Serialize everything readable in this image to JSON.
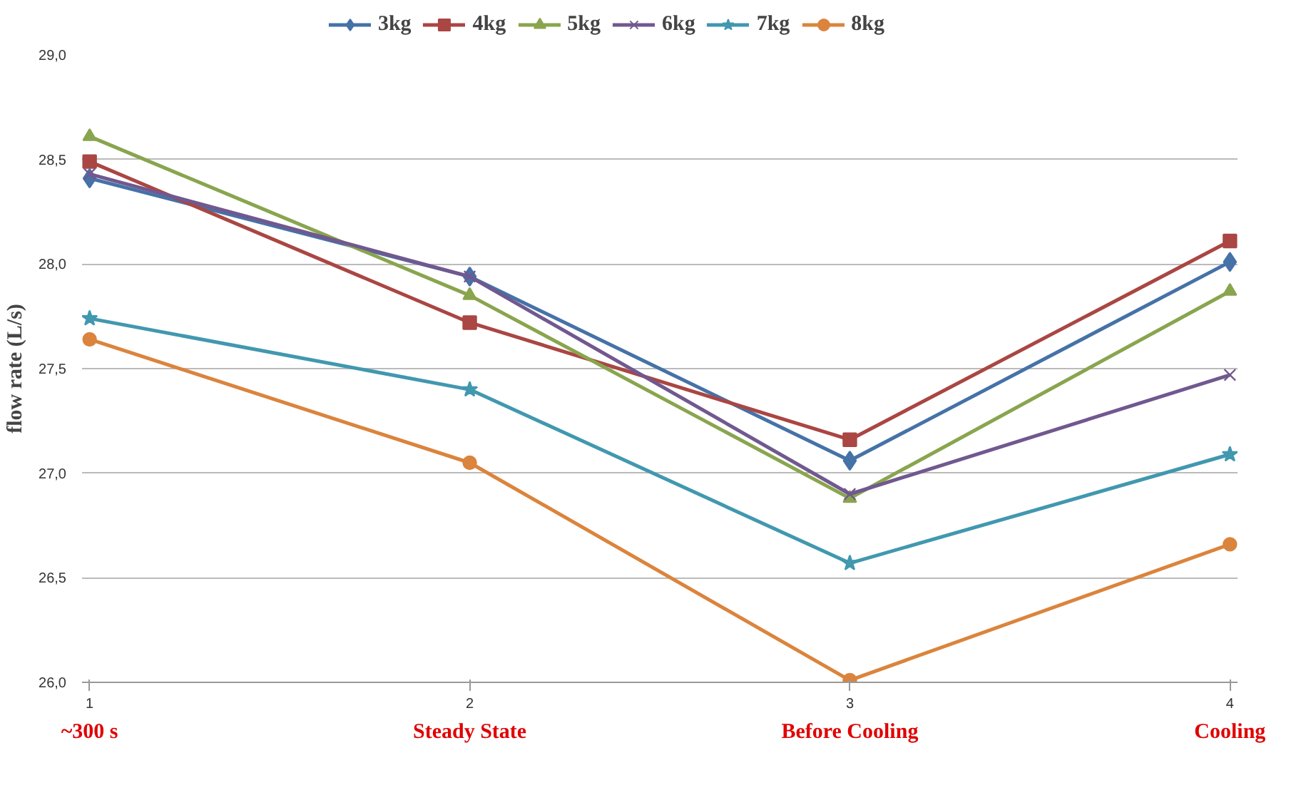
{
  "chart_data": {
    "type": "line",
    "ylabel": "flow rate (L/s)",
    "categories": [
      "1",
      "2",
      "3",
      "4"
    ],
    "annotations": [
      "~300 s",
      "Steady State",
      "Before Cooling",
      "Cooling"
    ],
    "ylim": [
      26.0,
      29.0
    ],
    "yticks": [
      {
        "value": 26.0,
        "label": "26,0"
      },
      {
        "value": 26.5,
        "label": "26,5"
      },
      {
        "value": 27.0,
        "label": "27,0"
      },
      {
        "value": 27.5,
        "label": "27,5"
      },
      {
        "value": 28.0,
        "label": "28,0"
      },
      {
        "value": 28.5,
        "label": "28,5"
      },
      {
        "value": 29.0,
        "label": "29,0"
      }
    ],
    "grid": "y",
    "legend": "top",
    "series": [
      {
        "name": "3kg",
        "color": "#4572a7",
        "marker": "diamond",
        "values": [
          28.41,
          27.94,
          27.06,
          28.01
        ]
      },
      {
        "name": "4kg",
        "color": "#aa4643",
        "marker": "square",
        "values": [
          28.49,
          27.72,
          27.16,
          28.11
        ]
      },
      {
        "name": "5kg",
        "color": "#89a54e",
        "marker": "triangle",
        "values": [
          28.61,
          27.85,
          26.88,
          27.87
        ]
      },
      {
        "name": "6kg",
        "color": "#71588f",
        "marker": "cross",
        "values": [
          28.43,
          27.94,
          26.9,
          27.47
        ]
      },
      {
        "name": "7kg",
        "color": "#4198af",
        "marker": "star",
        "values": [
          27.74,
          27.4,
          26.57,
          27.09
        ]
      },
      {
        "name": "8kg",
        "color": "#db843d",
        "marker": "circle",
        "values": [
          27.64,
          27.05,
          26.01,
          26.66
        ]
      }
    ]
  }
}
